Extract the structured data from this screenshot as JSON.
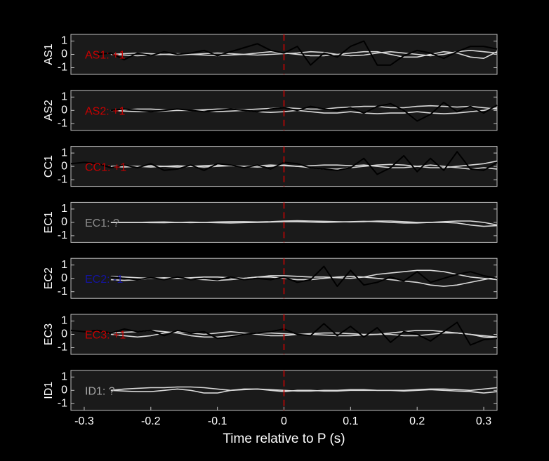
{
  "chart_data": [
    {
      "type": "line",
      "ylabel": "AS1",
      "annotation": "AS1: +1",
      "annotation_color": "#c80000",
      "xlim": [
        -0.32,
        0.32
      ],
      "ylim": [
        -1.5,
        1.5
      ],
      "yticks": [
        -1,
        0,
        1
      ],
      "vline": 0,
      "vline_color": "#d00000",
      "x": [
        -0.32,
        -0.3,
        -0.28,
        -0.26,
        -0.24,
        -0.22,
        -0.2,
        -0.18,
        -0.16,
        -0.14,
        -0.12,
        -0.1,
        -0.08,
        -0.06,
        -0.04,
        -0.02,
        0,
        0.02,
        0.04,
        0.06,
        0.08,
        0.1,
        0.12,
        0.14,
        0.16,
        0.18,
        0.2,
        0.22,
        0.24,
        0.26,
        0.28,
        0.3,
        0.32
      ],
      "series": [
        {
          "color": "#d9d9d9",
          "values": [
            null,
            null,
            null,
            0,
            0.05,
            0.1,
            0.05,
            0,
            -0.05,
            0,
            0.05,
            0.1,
            0.05,
            0,
            -0.05,
            0,
            0.05,
            0.1,
            0.2,
            0.15,
            0,
            -0.1,
            -0.05,
            0.1,
            0.2,
            0.1,
            0,
            -0.1,
            0,
            0.2,
            0.3,
            0.2,
            0.1
          ]
        },
        {
          "color": "#d9d9d9",
          "values": [
            null,
            null,
            null,
            0,
            -0.05,
            -0.1,
            -0.05,
            0,
            0.05,
            0,
            -0.05,
            -0.1,
            -0.05,
            0,
            0.1,
            0.2,
            0.1,
            0,
            -0.1,
            -0.1,
            0,
            0.1,
            0.2,
            0.2,
            0,
            -0.2,
            -0.2,
            0,
            0.2,
            0.1,
            -0.2,
            -0.3,
            0.2
          ]
        },
        {
          "color": "#000000",
          "values": [
            null,
            null,
            0,
            0.1,
            -0.4,
            0.1,
            -0.1,
            0.2,
            0,
            0.1,
            0.3,
            -0.1,
            0.2,
            0.5,
            0.8,
            0.3,
            0.1,
            0.6,
            -0.8,
            0.1,
            -0.2,
            0.6,
            1.0,
            -0.8,
            -0.8,
            -0.1,
            0.3,
            0.1,
            -0.3,
            0.2,
            0.6,
            0.6,
            0.4
          ]
        }
      ]
    },
    {
      "type": "line",
      "ylabel": "AS2",
      "annotation": "AS2: +1",
      "annotation_color": "#c80000",
      "xlim": [
        -0.32,
        0.32
      ],
      "ylim": [
        -1.5,
        1.5
      ],
      "yticks": [
        -1,
        0,
        1
      ],
      "vline": 0,
      "vline_color": "#d00000",
      "x": [
        -0.32,
        -0.3,
        -0.28,
        -0.26,
        -0.24,
        -0.22,
        -0.2,
        -0.18,
        -0.16,
        -0.14,
        -0.12,
        -0.1,
        -0.08,
        -0.06,
        -0.04,
        -0.02,
        0,
        0.02,
        0.04,
        0.06,
        0.08,
        0.1,
        0.12,
        0.14,
        0.16,
        0.18,
        0.2,
        0.22,
        0.24,
        0.26,
        0.28,
        0.3,
        0.32
      ],
      "series": [
        {
          "color": "#d9d9d9",
          "values": [
            null,
            null,
            null,
            0,
            0.05,
            0.1,
            0.1,
            0.05,
            0,
            0,
            0.05,
            0.1,
            0.1,
            0.05,
            0.1,
            0.15,
            0.2,
            0.15,
            0.1,
            0.1,
            0.2,
            0.25,
            0.3,
            0.3,
            0.2,
            0.2,
            0.3,
            0.35,
            0.3,
            0.25,
            0.3,
            0.2,
            0.1
          ]
        },
        {
          "color": "#d9d9d9",
          "values": [
            null,
            null,
            null,
            0,
            -0.05,
            -0.1,
            -0.1,
            -0.05,
            0,
            0,
            -0.05,
            -0.1,
            -0.05,
            0,
            -0.1,
            -0.15,
            -0.1,
            0,
            -0.1,
            -0.2,
            -0.2,
            -0.1,
            -0.2,
            -0.25,
            -0.2,
            -0.2,
            -0.1,
            -0.2,
            -0.25,
            -0.2,
            -0.1,
            0,
            0.2
          ]
        },
        {
          "color": "#000000",
          "values": [
            null,
            null,
            null,
            0,
            0.1,
            0,
            -0.1,
            0,
            0.1,
            0,
            -0.1,
            0,
            0.1,
            0,
            -0.1,
            0.1,
            0.2,
            0,
            0.3,
            0.1,
            0,
            0.2,
            -0.2,
            0.3,
            0.5,
            0,
            -0.8,
            -0.3,
            0.6,
            -0.1,
            0.3,
            -0.2,
            0.4
          ]
        }
      ]
    },
    {
      "type": "line",
      "ylabel": "CC1",
      "annotation": "CC1: +1",
      "annotation_color": "#c80000",
      "xlim": [
        -0.32,
        0.32
      ],
      "ylim": [
        -1.5,
        1.5
      ],
      "yticks": [
        -1,
        0,
        1
      ],
      "vline": 0,
      "vline_color": "#d00000",
      "x": [
        -0.32,
        -0.3,
        -0.28,
        -0.26,
        -0.24,
        -0.22,
        -0.2,
        -0.18,
        -0.16,
        -0.14,
        -0.12,
        -0.1,
        -0.08,
        -0.06,
        -0.04,
        -0.02,
        0,
        0.02,
        0.04,
        0.06,
        0.08,
        0.1,
        0.12,
        0.14,
        0.16,
        0.18,
        0.2,
        0.22,
        0.24,
        0.26,
        0.28,
        0.3,
        0.32
      ],
      "series": [
        {
          "color": "#d9d9d9",
          "values": [
            null,
            null,
            null,
            0,
            0.05,
            0,
            -0.05,
            0,
            0.05,
            0,
            -0.05,
            0,
            0.05,
            0,
            -0.05,
            0,
            0.1,
            0,
            -0.1,
            -0.2,
            -0.2,
            -0.1,
            0,
            0.1,
            0.15,
            0.1,
            0,
            -0.1,
            -0.1,
            0,
            0.1,
            0.2,
            0.4
          ]
        },
        {
          "color": "#d9d9d9",
          "values": [
            null,
            null,
            null,
            0,
            -0.05,
            0,
            0.05,
            0,
            -0.05,
            0,
            0.05,
            0.1,
            0.05,
            0,
            0.05,
            0.1,
            0.05,
            0,
            0.05,
            0.1,
            0.1,
            0.05,
            0.1,
            0,
            -0.1,
            -0.1,
            0,
            0.1,
            0,
            -0.1,
            -0.2,
            -0.1,
            -0.2
          ]
        },
        {
          "color": "#000000",
          "values": [
            0.2,
            0.3,
            0.2,
            -0.1,
            0.1,
            -0.1,
            0.2,
            -0.3,
            -0.2,
            0.1,
            -0.3,
            0.2,
            0.1,
            -0.1,
            0.1,
            -0.2,
            0.3,
            0.2,
            -0.1,
            -0.2,
            -0.3,
            -0.1,
            0.6,
            -0.6,
            -0.1,
            0.8,
            -0.4,
            0.6,
            -0.3,
            1.1,
            -0.2,
            -0.3,
            0.3
          ]
        }
      ]
    },
    {
      "type": "line",
      "ylabel": "EC1",
      "annotation": "EC1: ?",
      "annotation_color": "#8c8c8c",
      "xlim": [
        -0.32,
        0.32
      ],
      "ylim": [
        -1.5,
        1.5
      ],
      "yticks": [
        -1,
        0,
        1
      ],
      "vline": 0,
      "vline_color": "#d00000",
      "x": [
        -0.32,
        -0.3,
        -0.28,
        -0.26,
        -0.24,
        -0.22,
        -0.2,
        -0.18,
        -0.16,
        -0.14,
        -0.12,
        -0.1,
        -0.08,
        -0.06,
        -0.04,
        -0.02,
        0,
        0.02,
        0.04,
        0.06,
        0.08,
        0.1,
        0.12,
        0.14,
        0.16,
        0.18,
        0.2,
        0.22,
        0.24,
        0.26,
        0.28,
        0.3,
        0.32
      ],
      "series": [
        {
          "color": "#d9d9d9",
          "values": [
            null,
            null,
            null,
            0,
            0,
            0,
            0.02,
            0.03,
            0,
            -0.02,
            0,
            0.03,
            0.05,
            0.05,
            0.03,
            0.05,
            0.1,
            0.12,
            0.1,
            0.08,
            0.05,
            0.03,
            0.05,
            0.1,
            0.1,
            0.05,
            0,
            0,
            0.05,
            0.1,
            0.1,
            0,
            -0.2
          ]
        },
        {
          "color": "#d9d9d9",
          "values": [
            null,
            null,
            null,
            0,
            0,
            0,
            -0.02,
            -0.03,
            0,
            0.02,
            0,
            -0.03,
            -0.05,
            -0.02,
            0,
            0.02,
            0.05,
            0.05,
            0.02,
            0,
            0.02,
            0.05,
            0.08,
            0.05,
            0,
            -0.05,
            -0.05,
            0,
            0,
            -0.05,
            -0.2,
            -0.3,
            -0.25
          ]
        }
      ]
    },
    {
      "type": "line",
      "ylabel": "EC2",
      "annotation": "EC2: -1",
      "annotation_color": "#1414a0",
      "xlim": [
        -0.32,
        0.32
      ],
      "ylim": [
        -1.5,
        1.5
      ],
      "yticks": [
        -1,
        0,
        1
      ],
      "vline": 0,
      "vline_color": "#d00000",
      "x": [
        -0.32,
        -0.3,
        -0.28,
        -0.26,
        -0.24,
        -0.22,
        -0.2,
        -0.18,
        -0.16,
        -0.14,
        -0.12,
        -0.1,
        -0.08,
        -0.06,
        -0.04,
        -0.02,
        0,
        0.02,
        0.04,
        0.06,
        0.08,
        0.1,
        0.12,
        0.14,
        0.16,
        0.18,
        0.2,
        0.22,
        0.24,
        0.26,
        0.28,
        0.3,
        0.32
      ],
      "series": [
        {
          "color": "#d9d9d9",
          "values": [
            null,
            null,
            null,
            0.15,
            0.1,
            0.05,
            0,
            -0.05,
            0,
            0.05,
            0.1,
            0.1,
            0.05,
            0,
            0.1,
            0.2,
            0.2,
            0.15,
            0.1,
            0.1,
            0.05,
            0,
            0.1,
            0.3,
            0.4,
            0.5,
            0.6,
            0.6,
            0.5,
            0.3,
            0.1,
            0,
            -0.1
          ]
        },
        {
          "color": "#d9d9d9",
          "values": [
            null,
            null,
            null,
            -0.1,
            -0.15,
            -0.1,
            0,
            0.05,
            0,
            -0.05,
            -0.1,
            -0.15,
            -0.1,
            0,
            0.1,
            0.1,
            0,
            -0.1,
            -0.1,
            0,
            0.1,
            0.15,
            0.1,
            0,
            -0.1,
            -0.2,
            -0.3,
            -0.5,
            -0.6,
            -0.5,
            -0.3,
            -0.1,
            0.1
          ]
        },
        {
          "color": "#000000",
          "values": [
            null,
            null,
            null,
            0.1,
            0,
            -0.1,
            0.05,
            -0.1,
            0.1,
            -0.1,
            0,
            -0.1,
            0.1,
            -0.1,
            0,
            -0.1,
            0.1,
            -0.3,
            -0.1,
            0.9,
            -0.6,
            0.6,
            -0.5,
            -0.3,
            0.1,
            -0.2,
            0.5,
            -0.3,
            0,
            0.3,
            0.5,
            0.2,
            0
          ]
        }
      ]
    },
    {
      "type": "line",
      "ylabel": "EC3",
      "annotation": "EC3: +1",
      "annotation_color": "#c80000",
      "xlim": [
        -0.32,
        0.32
      ],
      "ylim": [
        -1.5,
        1.5
      ],
      "yticks": [
        -1,
        0,
        1
      ],
      "vline": 0,
      "vline_color": "#d00000",
      "x": [
        -0.32,
        -0.3,
        -0.28,
        -0.26,
        -0.24,
        -0.22,
        -0.2,
        -0.18,
        -0.16,
        -0.14,
        -0.12,
        -0.1,
        -0.08,
        -0.06,
        -0.04,
        -0.02,
        0,
        0.02,
        0.04,
        0.06,
        0.08,
        0.1,
        0.12,
        0.14,
        0.16,
        0.18,
        0.2,
        0.22,
        0.24,
        0.26,
        0.28,
        0.3,
        0.32
      ],
      "series": [
        {
          "color": "#d9d9d9",
          "values": [
            null,
            null,
            null,
            0.1,
            0.15,
            0.2,
            0.3,
            0.2,
            0.1,
            -0.1,
            -0.2,
            -0.2,
            -0.1,
            0,
            0.1,
            0.1,
            0.05,
            0,
            0.05,
            0.1,
            0.1,
            0.05,
            0,
            0,
            0.1,
            0.2,
            0.3,
            0.3,
            0.2,
            0.1,
            0,
            -0.1,
            -0.2
          ]
        },
        {
          "color": "#d9d9d9",
          "values": [
            null,
            null,
            null,
            0,
            -0.1,
            -0.2,
            -0.1,
            0.1,
            0.2,
            0.1,
            0,
            0.1,
            0.2,
            0.1,
            0,
            -0.1,
            -0.1,
            0,
            0,
            -0.05,
            -0.1,
            -0.1,
            -0.05,
            0,
            0,
            -0.1,
            -0.1,
            0,
            0.1,
            0.1,
            0,
            -0.2,
            -0.3
          ]
        },
        {
          "color": "#000000",
          "values": [
            0.3,
            0.2,
            0.3,
            0.1,
            0.4,
            0.2,
            0.3,
            -0.1,
            0.3,
            0.1,
            0.2,
            -0.3,
            -0.2,
            0,
            0.1,
            0.2,
            0.4,
            0,
            -0.1,
            0.8,
            -0.1,
            0.6,
            -0.2,
            0.5,
            -0.6,
            0.2,
            0,
            -0.5,
            0.2,
            0.9,
            -0.8,
            -0.4,
            -0.3
          ]
        }
      ]
    },
    {
      "type": "line",
      "ylabel": "ID1",
      "annotation": "ID1: ?",
      "annotation_color": "#a6a6a6",
      "xlim": [
        -0.32,
        0.32
      ],
      "ylim": [
        -1.5,
        1.5
      ],
      "yticks": [
        -1,
        0,
        1
      ],
      "vline": 0,
      "vline_color": "#d00000",
      "xticks": [
        -0.3,
        -0.2,
        -0.1,
        0,
        0.1,
        0.2,
        0.3
      ],
      "xlabel": "Time relative to P (s)",
      "x": [
        -0.32,
        -0.3,
        -0.28,
        -0.26,
        -0.24,
        -0.22,
        -0.2,
        -0.18,
        -0.16,
        -0.14,
        -0.12,
        -0.1,
        -0.08,
        -0.06,
        -0.04,
        -0.02,
        0,
        0.02,
        0.04,
        0.06,
        0.08,
        0.1,
        0.12,
        0.14,
        0.16,
        0.18,
        0.2,
        0.22,
        0.24,
        0.26,
        0.28,
        0.3,
        0.32
      ],
      "series": [
        {
          "color": "#d9d9d9",
          "values": [
            null,
            null,
            null,
            0,
            0.1,
            0.15,
            0.2,
            0.2,
            0.25,
            0.25,
            0.2,
            0.1,
            0,
            0.05,
            0.1,
            0.05,
            0,
            -0.05,
            -0.05,
            0,
            0,
            0.05,
            0.05,
            0,
            0,
            0,
            0.05,
            0.1,
            0.1,
            0.05,
            0,
            0.1,
            0.2
          ]
        },
        {
          "color": "#d9d9d9",
          "values": [
            null,
            null,
            null,
            0,
            -0.05,
            -0.1,
            -0.1,
            0,
            0.1,
            0,
            -0.2,
            -0.2,
            0,
            0.1,
            0.1,
            0,
            -0.1,
            0,
            0,
            -0.05,
            -0.05,
            0,
            0,
            0,
            0,
            -0.05,
            0,
            0.05,
            0,
            -0.05,
            -0.1,
            -0.2,
            -0.1
          ]
        }
      ]
    }
  ]
}
